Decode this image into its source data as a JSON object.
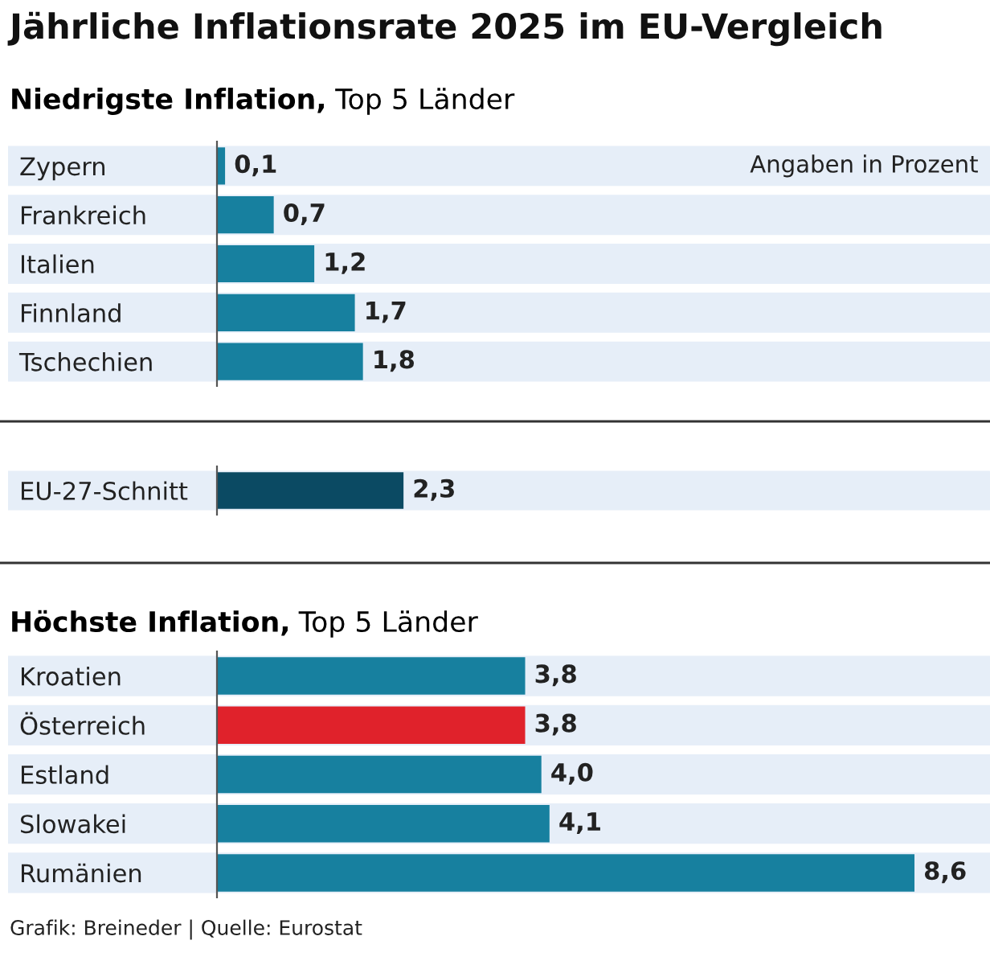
{
  "chart_data": [
    {
      "type": "bar",
      "orientation": "horizontal",
      "title": "Jährliche Inflationsrate 2025 im EU-Vergleich",
      "subtitle": "Niedrigste Inflation, Top 5 Länder",
      "categories": [
        "Zypern",
        "Frankreich",
        "Italien",
        "Finnland",
        "Tschechien"
      ],
      "series": [
        {
          "values": [
            0.1,
            0.7,
            1.2,
            1.7,
            1.8
          ],
          "colors": [
            "#17809f",
            "#17809f",
            "#17809f",
            "#17809f",
            "#17809f"
          ],
          "value_labels": [
            "0,1",
            "0,7",
            "1,2",
            "1,7",
            "1,8"
          ]
        }
      ],
      "annotations": [
        "Angaben in Prozent"
      ],
      "tick_labels": "y",
      "grid": false,
      "legend": false
    },
    {
      "type": "bar",
      "orientation": "horizontal",
      "categories": [
        "EU-27-Schnitt"
      ],
      "series": [
        {
          "values": [
            2.3
          ],
          "colors": [
            "#0b4a63"
          ],
          "value_labels": [
            "2,3"
          ]
        }
      ],
      "tick_labels": "y",
      "grid": false,
      "legend": false
    },
    {
      "type": "bar",
      "orientation": "horizontal",
      "subtitle": "Höchste Inflation, Top 5 Länder",
      "categories": [
        "Kroatien",
        "Österreich",
        "Estland",
        "Slowakei",
        "Rumänien"
      ],
      "series": [
        {
          "values": [
            3.8,
            3.8,
            4.0,
            4.1,
            8.6
          ],
          "colors": [
            "#17809f",
            "#e0222b",
            "#17809f",
            "#17809f",
            "#17809f"
          ],
          "value_labels": [
            "3,8",
            "3,8",
            "4,0",
            "4,1",
            "8,6"
          ]
        }
      ],
      "annotations": [
        "Grafik: Breineder | Quelle: Eurostat"
      ],
      "tick_labels": "y",
      "grid": false,
      "legend": false
    }
  ]
}
